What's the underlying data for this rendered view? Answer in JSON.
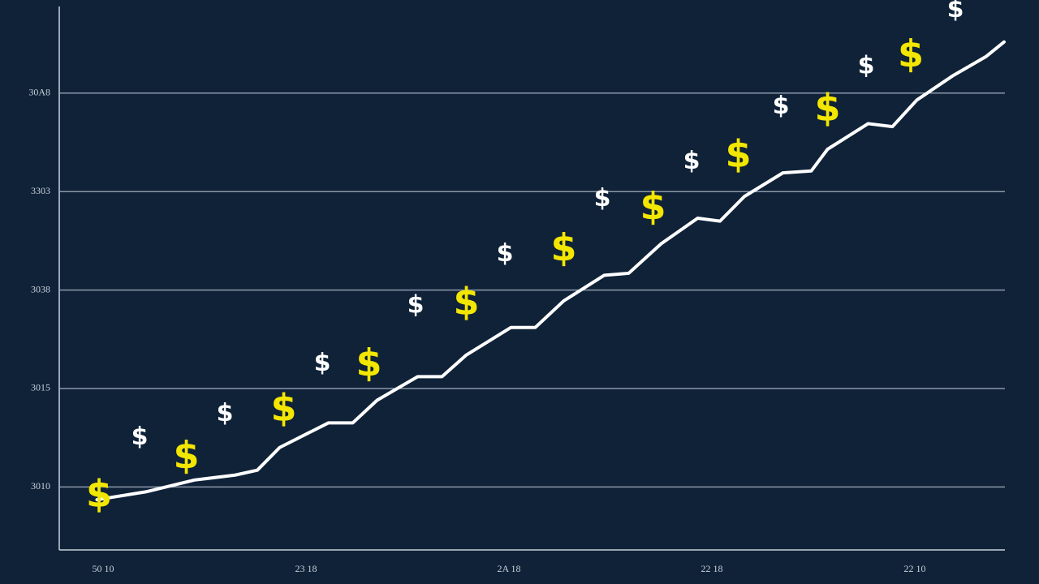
{
  "chart_data": {
    "type": "line",
    "background": "#0f2238",
    "xlim": [
      -0.216,
      4.444
    ],
    "ylim": [
      0.36,
      5.88
    ],
    "xticks": [
      {
        "value": 0,
        "label": "50 10"
      },
      {
        "value": 1,
        "label": "23 18"
      },
      {
        "value": 2,
        "label": "2A 18"
      },
      {
        "value": 3,
        "label": "22 18"
      },
      {
        "value": 4,
        "label": "22 10"
      }
    ],
    "yticks": [
      {
        "value": 1,
        "label": "3010"
      },
      {
        "value": 2,
        "label": "3015"
      },
      {
        "value": 3,
        "label": "3038"
      },
      {
        "value": 4,
        "label": "3303"
      },
      {
        "value": 5,
        "label": "30A8"
      }
    ],
    "grid": true,
    "x": [
      -0.03,
      0.21,
      0.45,
      0.65,
      0.76,
      0.87,
      1.11,
      1.23,
      1.35,
      1.55,
      1.67,
      1.79,
      2.01,
      2.13,
      2.27,
      2.47,
      2.59,
      2.75,
      2.93,
      3.04,
      3.16,
      3.35,
      3.49,
      3.57,
      3.77,
      3.89,
      4.01,
      4.19,
      4.35,
      4.44
    ],
    "series": [
      {
        "color": "#ffffff",
        "values": [
          0.87,
          0.95,
          1.07,
          1.12,
          1.17,
          1.4,
          1.65,
          1.65,
          1.88,
          2.12,
          2.12,
          2.34,
          2.62,
          2.62,
          2.89,
          3.15,
          3.17,
          3.47,
          3.73,
          3.7,
          3.95,
          4.19,
          4.21,
          4.43,
          4.69,
          4.66,
          4.93,
          5.18,
          5.37,
          5.52
        ]
      }
    ],
    "markers": [
      {
        "symbol": "$",
        "color": "#f3e600",
        "x": [
          -0.02,
          0.41,
          0.89,
          1.31,
          1.79,
          2.27,
          2.71,
          3.13,
          3.57,
          3.98
        ],
        "y": [
          0.93,
          1.32,
          1.8,
          2.26,
          2.88,
          3.43,
          3.85,
          4.38,
          4.85,
          5.4
        ]
      },
      {
        "symbol": "$",
        "color": "#ffffff",
        "x": [
          0.18,
          0.6,
          1.08,
          1.54,
          1.98,
          2.46,
          2.9,
          3.34,
          3.76,
          4.2
        ],
        "y": [
          1.51,
          1.75,
          2.26,
          2.85,
          3.37,
          3.93,
          4.31,
          4.87,
          5.28,
          5.85
        ]
      }
    ]
  }
}
